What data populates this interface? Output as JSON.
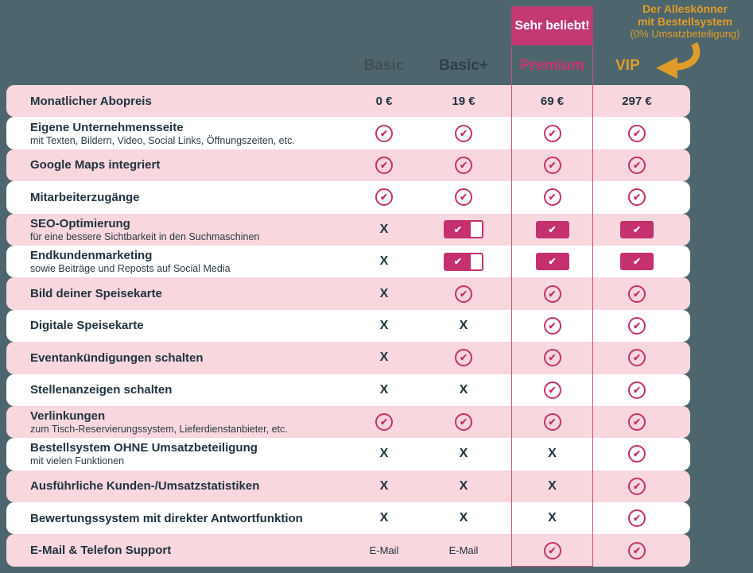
{
  "colors": {
    "background": "#4d666d",
    "accent_magenta": "#c5316e",
    "row_pink": "#f8d7de",
    "row_white": "#ffffff",
    "text_navy": "#20333f",
    "orange": "#e09c28",
    "premium_outline": "#c84d7f"
  },
  "popular_badge": {
    "label": "Sehr beliebt!"
  },
  "vip_note": {
    "line1": "Der Alleskönner",
    "line2": "mit Bestellsystem",
    "line3": "(0% Umsatzbeteiligung)"
  },
  "columns": [
    {
      "id": "basic",
      "label": "Basic",
      "color": "#454e55"
    },
    {
      "id": "basicplus",
      "label": "Basic+",
      "color": "#2f3e49"
    },
    {
      "id": "premium",
      "label": "Premium",
      "color": "#ca346f"
    },
    {
      "id": "vip",
      "label": "VIP",
      "color": "#e09c28"
    }
  ],
  "icons": {
    "check_glyph": "✔",
    "x_glyph": "X",
    "vip_arrow": "curved-arrow-left"
  },
  "rows": [
    {
      "label": "Monatlicher Abopreis",
      "sublabel": "",
      "values": [
        {
          "type": "price",
          "text": "0 €"
        },
        {
          "type": "price",
          "text": "19 €"
        },
        {
          "type": "price",
          "text": "69 €"
        },
        {
          "type": "price",
          "text": "297 €"
        }
      ]
    },
    {
      "label": "Eigene Unternehmensseite",
      "sublabel": "mit Texten, Bildern, Video, Social Links, Öffnungszeiten, etc.",
      "values": [
        {
          "type": "check"
        },
        {
          "type": "check"
        },
        {
          "type": "check"
        },
        {
          "type": "check"
        }
      ]
    },
    {
      "label": "Google Maps integriert",
      "sublabel": "",
      "values": [
        {
          "type": "check"
        },
        {
          "type": "check"
        },
        {
          "type": "check"
        },
        {
          "type": "check"
        }
      ]
    },
    {
      "label": "Mitarbeiterzugänge",
      "sublabel": "",
      "values": [
        {
          "type": "check"
        },
        {
          "type": "check"
        },
        {
          "type": "check"
        },
        {
          "type": "check"
        }
      ]
    },
    {
      "label": "SEO-Optimierung",
      "sublabel": "für eine bessere Sichtbarkeit in den Suchmaschinen",
      "values": [
        {
          "type": "x"
        },
        {
          "type": "partial"
        },
        {
          "type": "full"
        },
        {
          "type": "full"
        }
      ]
    },
    {
      "label": "Endkundenmarketing",
      "sublabel": "sowie Beiträge und Reposts auf Social Media",
      "values": [
        {
          "type": "x"
        },
        {
          "type": "partial"
        },
        {
          "type": "full"
        },
        {
          "type": "full"
        }
      ]
    },
    {
      "label": "Bild deiner Speisekarte",
      "sublabel": "",
      "values": [
        {
          "type": "x"
        },
        {
          "type": "check"
        },
        {
          "type": "check"
        },
        {
          "type": "check"
        }
      ]
    },
    {
      "label": "Digitale Speisekarte",
      "sublabel": "",
      "values": [
        {
          "type": "x"
        },
        {
          "type": "x"
        },
        {
          "type": "check"
        },
        {
          "type": "check"
        }
      ]
    },
    {
      "label": "Eventankündigungen schalten",
      "sublabel": "",
      "values": [
        {
          "type": "x"
        },
        {
          "type": "check"
        },
        {
          "type": "check"
        },
        {
          "type": "check"
        }
      ]
    },
    {
      "label": "Stellenanzeigen schalten",
      "sublabel": "",
      "values": [
        {
          "type": "x"
        },
        {
          "type": "x"
        },
        {
          "type": "check"
        },
        {
          "type": "check"
        }
      ]
    },
    {
      "label": "Verlinkungen",
      "sublabel": "zum Tisch-Reservierungssystem, Lieferdienstanbieter, etc.",
      "values": [
        {
          "type": "check"
        },
        {
          "type": "check"
        },
        {
          "type": "check"
        },
        {
          "type": "check"
        }
      ]
    },
    {
      "label": "Bestellsystem OHNE Umsatzbeteiligung",
      "sublabel": "mit vielen Funktionen",
      "values": [
        {
          "type": "x"
        },
        {
          "type": "x"
        },
        {
          "type": "x"
        },
        {
          "type": "check"
        }
      ]
    },
    {
      "label": "Ausführliche Kunden-/Umsatzstatistiken",
      "sublabel": "",
      "values": [
        {
          "type": "x"
        },
        {
          "type": "x"
        },
        {
          "type": "x"
        },
        {
          "type": "check"
        }
      ]
    },
    {
      "label": "Bewertungssystem mit direkter Antwortfunktion",
      "sublabel": "",
      "values": [
        {
          "type": "x"
        },
        {
          "type": "x"
        },
        {
          "type": "x"
        },
        {
          "type": "check"
        }
      ]
    },
    {
      "label": "E-Mail & Telefon Support",
      "sublabel": "",
      "values": [
        {
          "type": "text",
          "text": "E-Mail"
        },
        {
          "type": "text",
          "text": "E-Mail"
        },
        {
          "type": "check"
        },
        {
          "type": "check"
        }
      ]
    }
  ]
}
